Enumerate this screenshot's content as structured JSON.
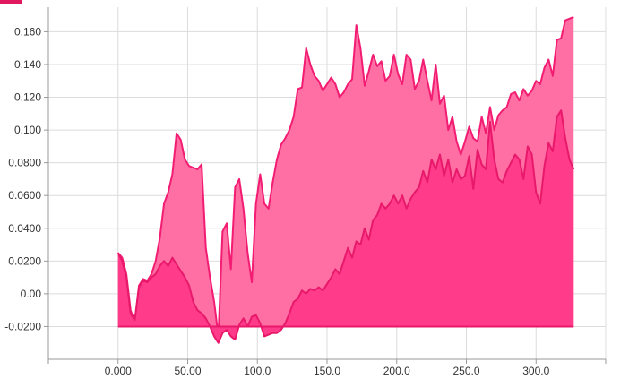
{
  "chart_data": {
    "type": "area",
    "title": "",
    "xlabel": "",
    "ylabel": "",
    "xlim": [
      -50,
      350
    ],
    "ylim": [
      -0.04,
      0.175
    ],
    "x_ticks": [
      {
        "value": 0,
        "label": "0.000"
      },
      {
        "value": 50,
        "label": "50.00"
      },
      {
        "value": 100,
        "label": "100.0"
      },
      {
        "value": 150,
        "label": "150.0"
      },
      {
        "value": 200,
        "label": "200.0"
      },
      {
        "value": 250,
        "label": "250.0"
      },
      {
        "value": 300,
        "label": "300.0"
      }
    ],
    "y_ticks": [
      {
        "value": -0.02,
        "label": "-0.0200"
      },
      {
        "value": 0.0,
        "label": "0.00"
      },
      {
        "value": 0.02,
        "label": "0.0200"
      },
      {
        "value": 0.04,
        "label": "0.0400"
      },
      {
        "value": 0.06,
        "label": "0.0600"
      },
      {
        "value": 0.08,
        "label": "0.0800"
      },
      {
        "value": 0.1,
        "label": "0.100"
      },
      {
        "value": 0.12,
        "label": "0.120"
      },
      {
        "value": 0.14,
        "label": "0.140"
      },
      {
        "value": 0.16,
        "label": "0.160"
      }
    ],
    "baseline": -0.02,
    "grid": true,
    "legend": "none",
    "series": [
      {
        "color": "#ff6fa3",
        "stroke": "#f21c72",
        "x": [
          0,
          3,
          6,
          9,
          12,
          15,
          18,
          21,
          24,
          27,
          30,
          33,
          36,
          39,
          42,
          45,
          48,
          51,
          54,
          57,
          60,
          63,
          66,
          69,
          72,
          75,
          78,
          81,
          84,
          87,
          90,
          93,
          96,
          99,
          102,
          105,
          108,
          111,
          114,
          117,
          120,
          123,
          126,
          129,
          132,
          135,
          138,
          141,
          144,
          147,
          150,
          153,
          156,
          159,
          162,
          165,
          168,
          171,
          174,
          177,
          180,
          183,
          186,
          189,
          192,
          195,
          198,
          201,
          204,
          207,
          210,
          213,
          216,
          219,
          222,
          225,
          228,
          231,
          234,
          237,
          240,
          243,
          246,
          249,
          252,
          255,
          258,
          261,
          264,
          267,
          270,
          273,
          276,
          279,
          282,
          285,
          288,
          291,
          294,
          297,
          300,
          303,
          306,
          309,
          312,
          315,
          318,
          321,
          324,
          327
        ],
        "values": [
          0.025,
          0.022,
          0.012,
          -0.01,
          -0.017,
          0.005,
          0.009,
          0.008,
          0.012,
          0.02,
          0.034,
          0.055,
          0.062,
          0.073,
          0.098,
          0.094,
          0.082,
          0.078,
          0.077,
          0.076,
          0.079,
          0.028,
          0.01,
          -0.005,
          -0.026,
          0.038,
          0.043,
          0.015,
          0.065,
          0.07,
          0.052,
          0.025,
          0.007,
          0.055,
          0.073,
          0.055,
          0.052,
          0.068,
          0.082,
          0.091,
          0.095,
          0.1,
          0.108,
          0.125,
          0.126,
          0.15,
          0.14,
          0.133,
          0.13,
          0.124,
          0.128,
          0.132,
          0.128,
          0.12,
          0.123,
          0.128,
          0.131,
          0.164,
          0.15,
          0.127,
          0.136,
          0.146,
          0.139,
          0.142,
          0.13,
          0.133,
          0.146,
          0.134,
          0.128,
          0.146,
          0.143,
          0.125,
          0.13,
          0.143,
          0.13,
          0.118,
          0.14,
          0.116,
          0.121,
          0.1,
          0.108,
          0.093,
          0.085,
          0.093,
          0.102,
          0.095,
          0.093,
          0.108,
          0.098,
          0.114,
          0.1,
          0.109,
          0.112,
          0.114,
          0.122,
          0.123,
          0.118,
          0.125,
          0.121,
          0.124,
          0.13,
          0.128,
          0.138,
          0.143,
          0.133,
          0.155,
          0.156,
          0.167,
          0.168,
          0.169
        ]
      },
      {
        "color": "#ff3b8a",
        "stroke": "#e8196a",
        "x": [
          0,
          3,
          6,
          9,
          12,
          15,
          18,
          21,
          24,
          27,
          30,
          33,
          36,
          39,
          42,
          45,
          48,
          51,
          54,
          57,
          60,
          63,
          66,
          69,
          72,
          75,
          78,
          81,
          84,
          87,
          90,
          93,
          96,
          99,
          102,
          105,
          108,
          111,
          114,
          117,
          120,
          123,
          126,
          129,
          132,
          135,
          138,
          141,
          144,
          147,
          150,
          153,
          156,
          159,
          162,
          165,
          168,
          171,
          174,
          177,
          180,
          183,
          186,
          189,
          192,
          195,
          198,
          201,
          204,
          207,
          210,
          213,
          216,
          219,
          222,
          225,
          228,
          231,
          234,
          237,
          240,
          243,
          246,
          249,
          252,
          255,
          258,
          261,
          264,
          267,
          270,
          273,
          276,
          279,
          282,
          285,
          288,
          291,
          294,
          297,
          300,
          303,
          306,
          309,
          312,
          315,
          318,
          321,
          324,
          327
        ],
        "values": [
          0.025,
          0.02,
          0.01,
          -0.012,
          -0.016,
          0.004,
          0.008,
          0.007,
          0.01,
          0.012,
          0.017,
          0.02,
          0.017,
          0.022,
          0.018,
          0.014,
          0.01,
          0.005,
          -0.005,
          -0.01,
          -0.012,
          -0.015,
          -0.02,
          -0.026,
          -0.03,
          -0.024,
          -0.022,
          -0.026,
          -0.028,
          -0.019,
          -0.015,
          -0.02,
          -0.014,
          -0.013,
          -0.018,
          -0.026,
          -0.025,
          -0.024,
          -0.024,
          -0.022,
          -0.018,
          -0.012,
          -0.005,
          -0.003,
          0.002,
          0.0,
          0.003,
          0.002,
          0.004,
          0.002,
          0.006,
          0.01,
          0.015,
          0.012,
          0.02,
          0.028,
          0.022,
          0.032,
          0.03,
          0.04,
          0.033,
          0.045,
          0.048,
          0.055,
          0.052,
          0.055,
          0.06,
          0.055,
          0.06,
          0.052,
          0.058,
          0.062,
          0.065,
          0.075,
          0.068,
          0.082,
          0.076,
          0.085,
          0.072,
          0.082,
          0.068,
          0.076,
          0.07,
          0.072,
          0.084,
          0.064,
          0.088,
          0.079,
          0.076,
          0.105,
          0.082,
          0.07,
          0.068,
          0.075,
          0.08,
          0.085,
          0.082,
          0.07,
          0.09,
          0.085,
          0.062,
          0.055,
          0.078,
          0.092,
          0.087,
          0.108,
          0.112,
          0.095,
          0.082,
          0.076
        ]
      }
    ]
  }
}
